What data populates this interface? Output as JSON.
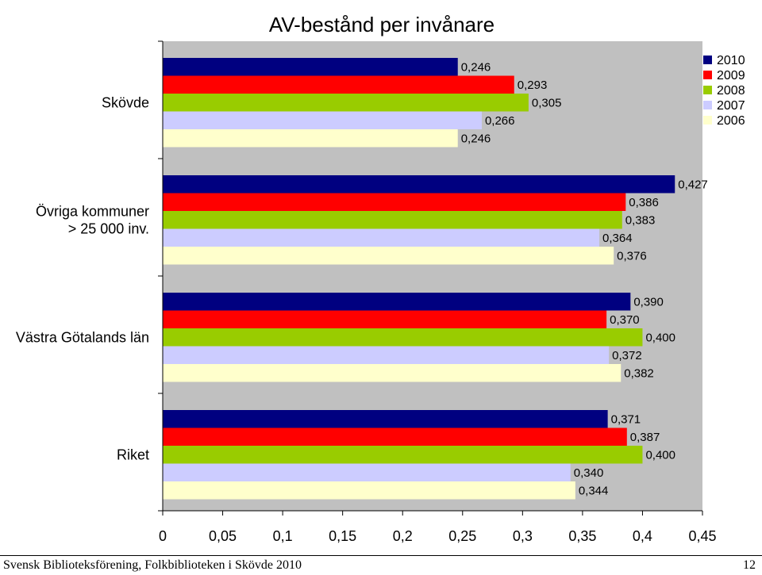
{
  "chart_data": {
    "type": "bar",
    "orientation": "horizontal",
    "title": "AV-bestånd per invånare",
    "categories": [
      "Skövde",
      "Övriga kommuner > 25 000 inv.",
      "Västra Götalands län",
      "Riket"
    ],
    "category_lines": [
      [
        "Skövde"
      ],
      [
        "Övriga kommuner",
        "> 25 000 inv."
      ],
      [
        "Västra Götalands län"
      ],
      [
        "Riket"
      ]
    ],
    "series": [
      {
        "name": "2010",
        "color": "#000080",
        "values": [
          0.246,
          0.427,
          0.39,
          0.371
        ],
        "labels": [
          "0,246",
          "0,427",
          "0,390",
          "0,371"
        ]
      },
      {
        "name": "2009",
        "color": "#FF0000",
        "values": [
          0.293,
          0.386,
          0.37,
          0.387
        ],
        "labels": [
          "0,293",
          "0,386",
          "0,370",
          "0,387"
        ]
      },
      {
        "name": "2008",
        "color": "#99CC00",
        "values": [
          0.305,
          0.383,
          0.4,
          0.4
        ],
        "labels": [
          "0,305",
          "0,383",
          "0,400",
          "0,400"
        ]
      },
      {
        "name": "2007",
        "color": "#CCCCFF",
        "values": [
          0.266,
          0.364,
          0.372,
          0.34
        ],
        "labels": [
          "0,266",
          "0,364",
          "0,372",
          "0,340"
        ]
      },
      {
        "name": "2006",
        "color": "#FFFFCC",
        "values": [
          0.246,
          0.376,
          0.382,
          0.344
        ],
        "labels": [
          "0,246",
          "0,376",
          "0,382",
          "0,344"
        ]
      }
    ],
    "xlim": [
      0,
      0.45
    ],
    "xticks": [
      0,
      0.05,
      0.1,
      0.15,
      0.2,
      0.25,
      0.3,
      0.35,
      0.4,
      0.45
    ],
    "xtick_labels": [
      "0",
      "0,05",
      "0,1",
      "0,15",
      "0,2",
      "0,25",
      "0,3",
      "0,35",
      "0,4",
      "0,45"
    ],
    "plot_background": "#C0C0C0",
    "grid": false,
    "legend_position": "top-right"
  },
  "footer": {
    "left": "Svensk Biblioteksförening, Folkbiblioteken i Skövde 2010",
    "right": "12"
  }
}
